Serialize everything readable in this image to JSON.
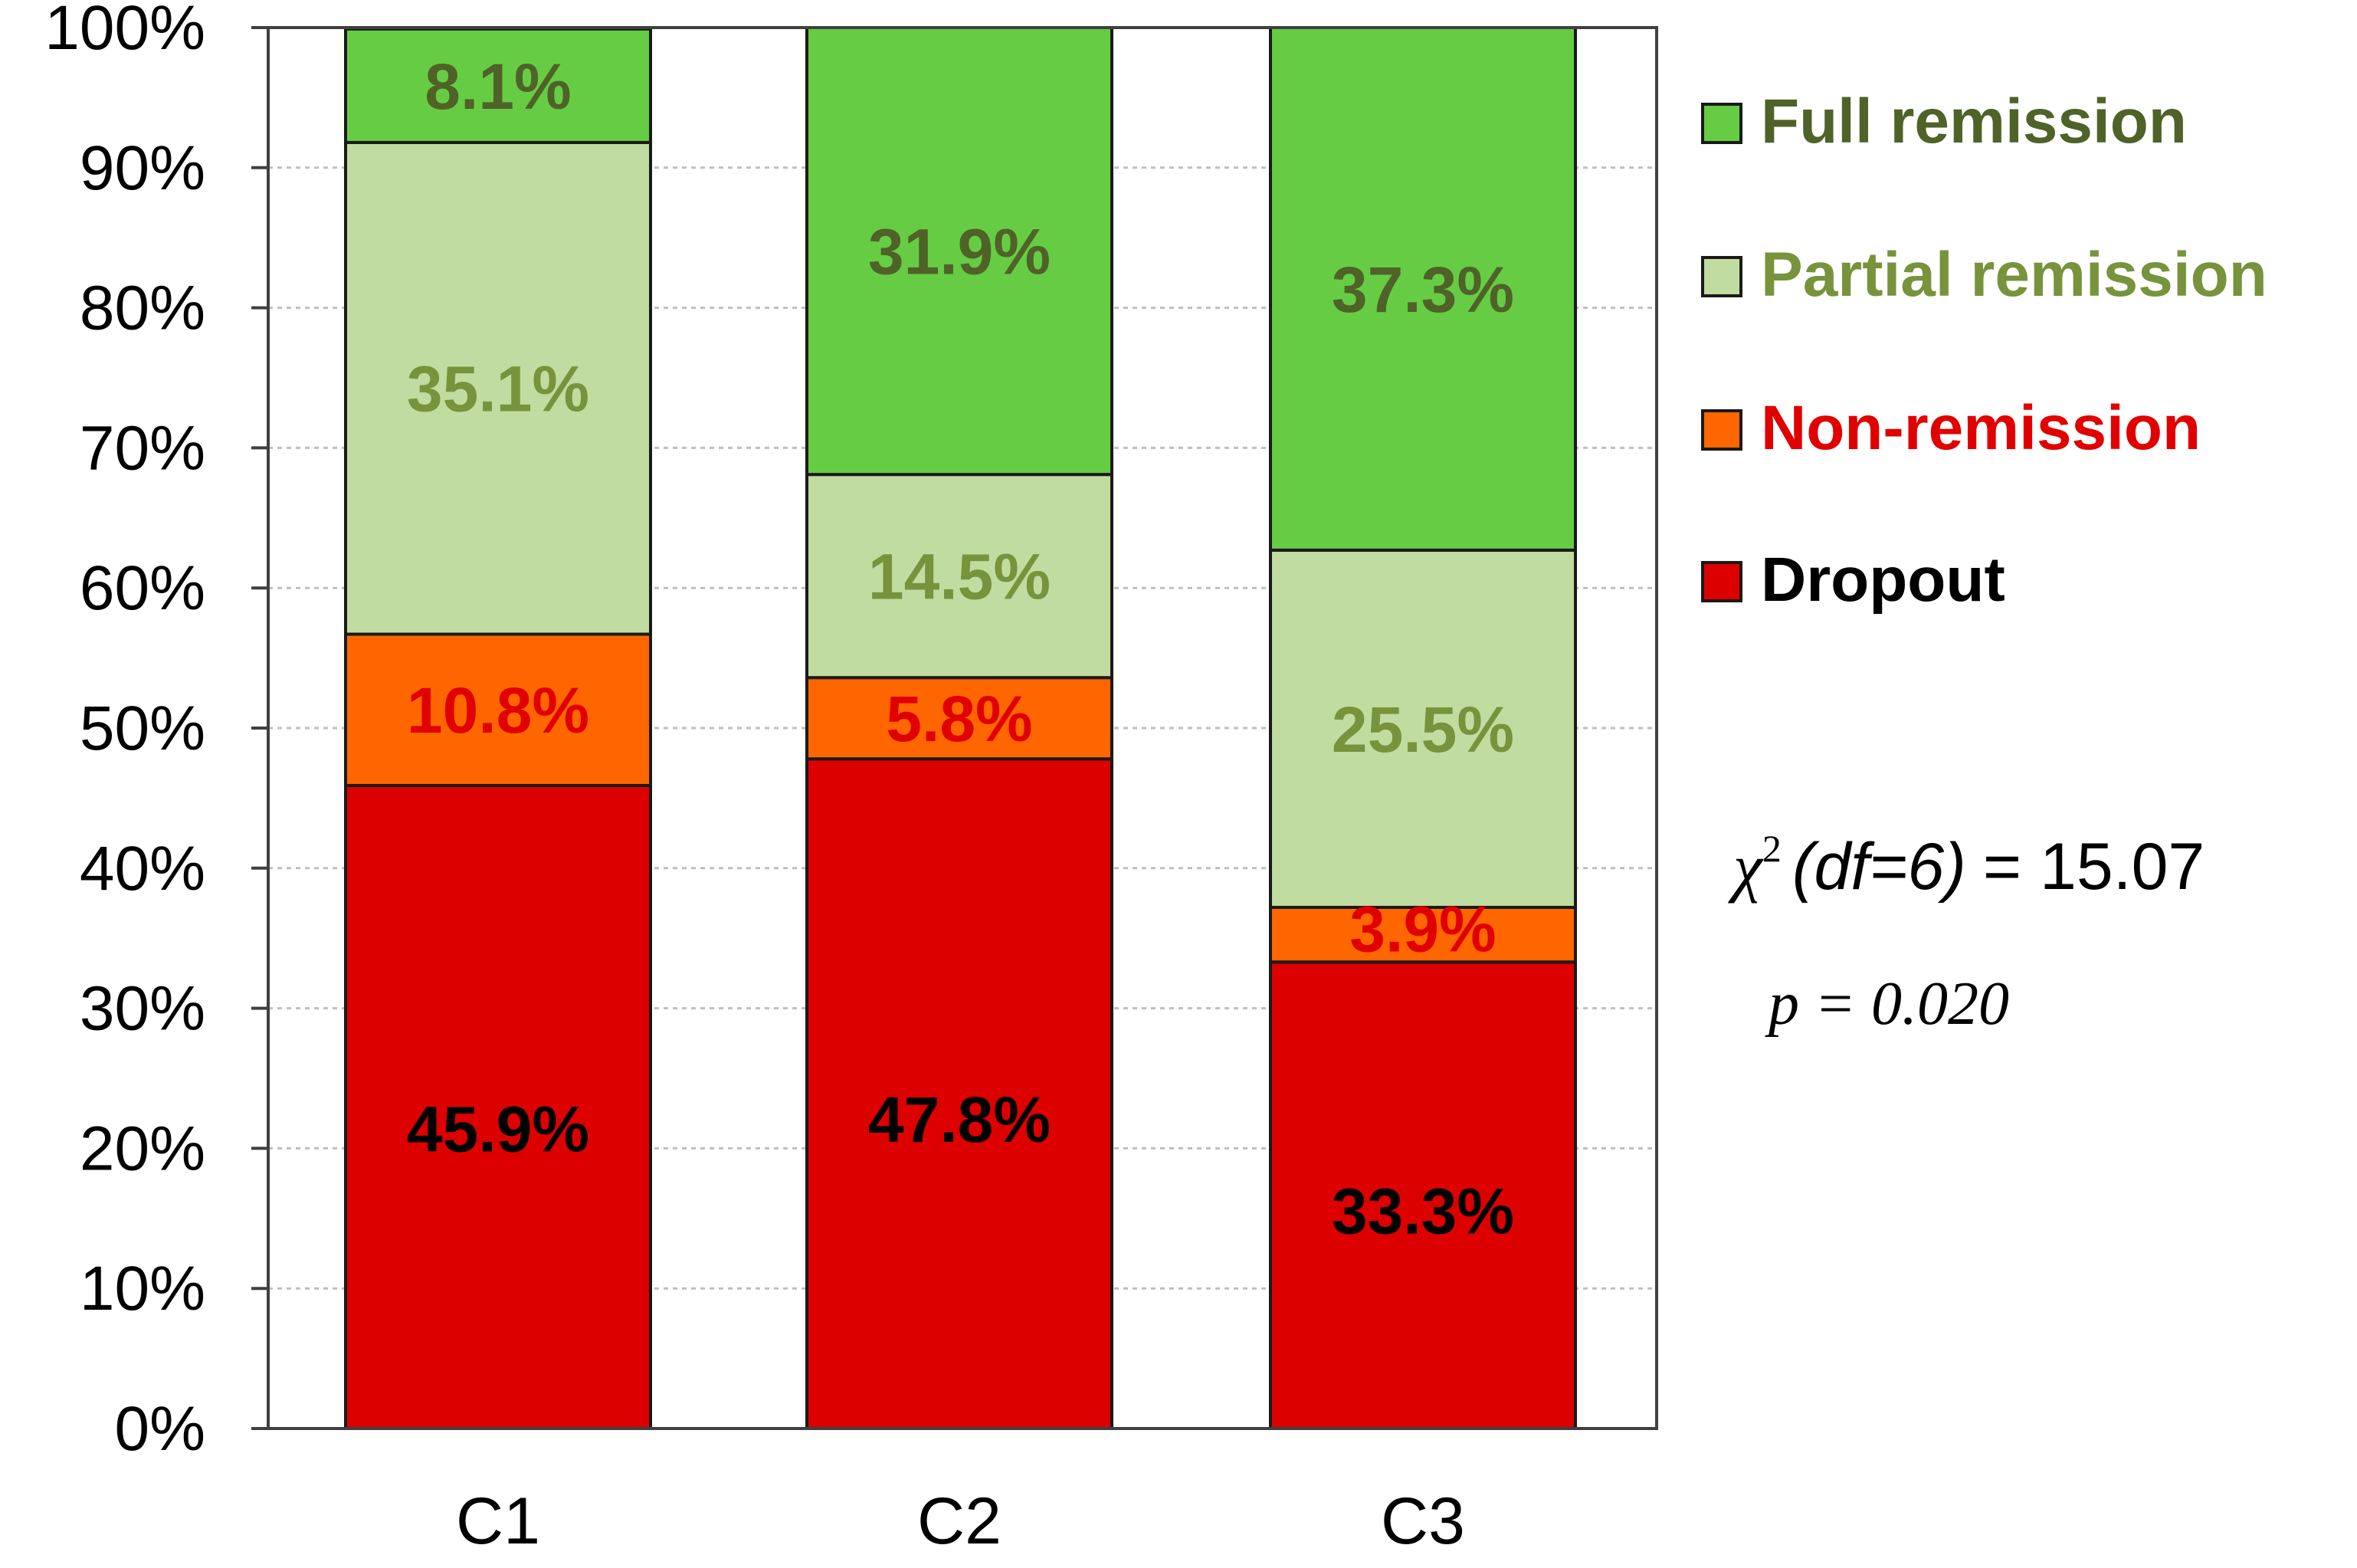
{
  "chart_data": {
    "type": "bar",
    "stacked": true,
    "categories": [
      "C1",
      "C2",
      "C3"
    ],
    "yticks": [
      "0%",
      "10%",
      "20%",
      "30%",
      "40%",
      "50%",
      "60%",
      "70%",
      "80%",
      "90%",
      "100%"
    ],
    "ylim": [
      0,
      100
    ],
    "grid": true,
    "legend_position": "right",
    "series": [
      {
        "name": "Dropout",
        "color": "#DD0000",
        "label_color": "#000000",
        "legend_text_color": "#000000",
        "values": [
          45.9,
          47.8,
          33.3
        ],
        "labels": [
          "45.9%",
          "47.8%",
          "33.3%"
        ]
      },
      {
        "name": "Non-remission",
        "color": "#FF6600",
        "label_color": "#E00000",
        "legend_text_color": "#E00000",
        "values": [
          10.8,
          5.8,
          3.9
        ],
        "labels": [
          "10.8%",
          "5.8%",
          "3.9%"
        ]
      },
      {
        "name": "Partial remission",
        "color": "#C0DCA0",
        "label_color": "#77933C",
        "legend_text_color": "#77933C",
        "values": [
          35.1,
          14.5,
          25.5
        ],
        "labels": [
          "35.1%",
          "14.5%",
          "25.5%"
        ]
      },
      {
        "name": "Full remission",
        "color": "#66CC44",
        "label_color": "#4F6228",
        "legend_text_color": "#4F6228",
        "values": [
          8.1,
          31.9,
          37.3
        ],
        "labels": [
          "8.1%",
          "31.9%",
          "37.3%"
        ]
      }
    ],
    "legend_order": [
      "Full remission",
      "Partial remission",
      "Non-remission",
      "Dropout"
    ],
    "annotations": {
      "chi_symbol": "χ",
      "chi_superscript": "2",
      "chi_df": "(df=6)",
      "chi_value": "= 15.07",
      "p_value": "p = 0.020"
    }
  }
}
